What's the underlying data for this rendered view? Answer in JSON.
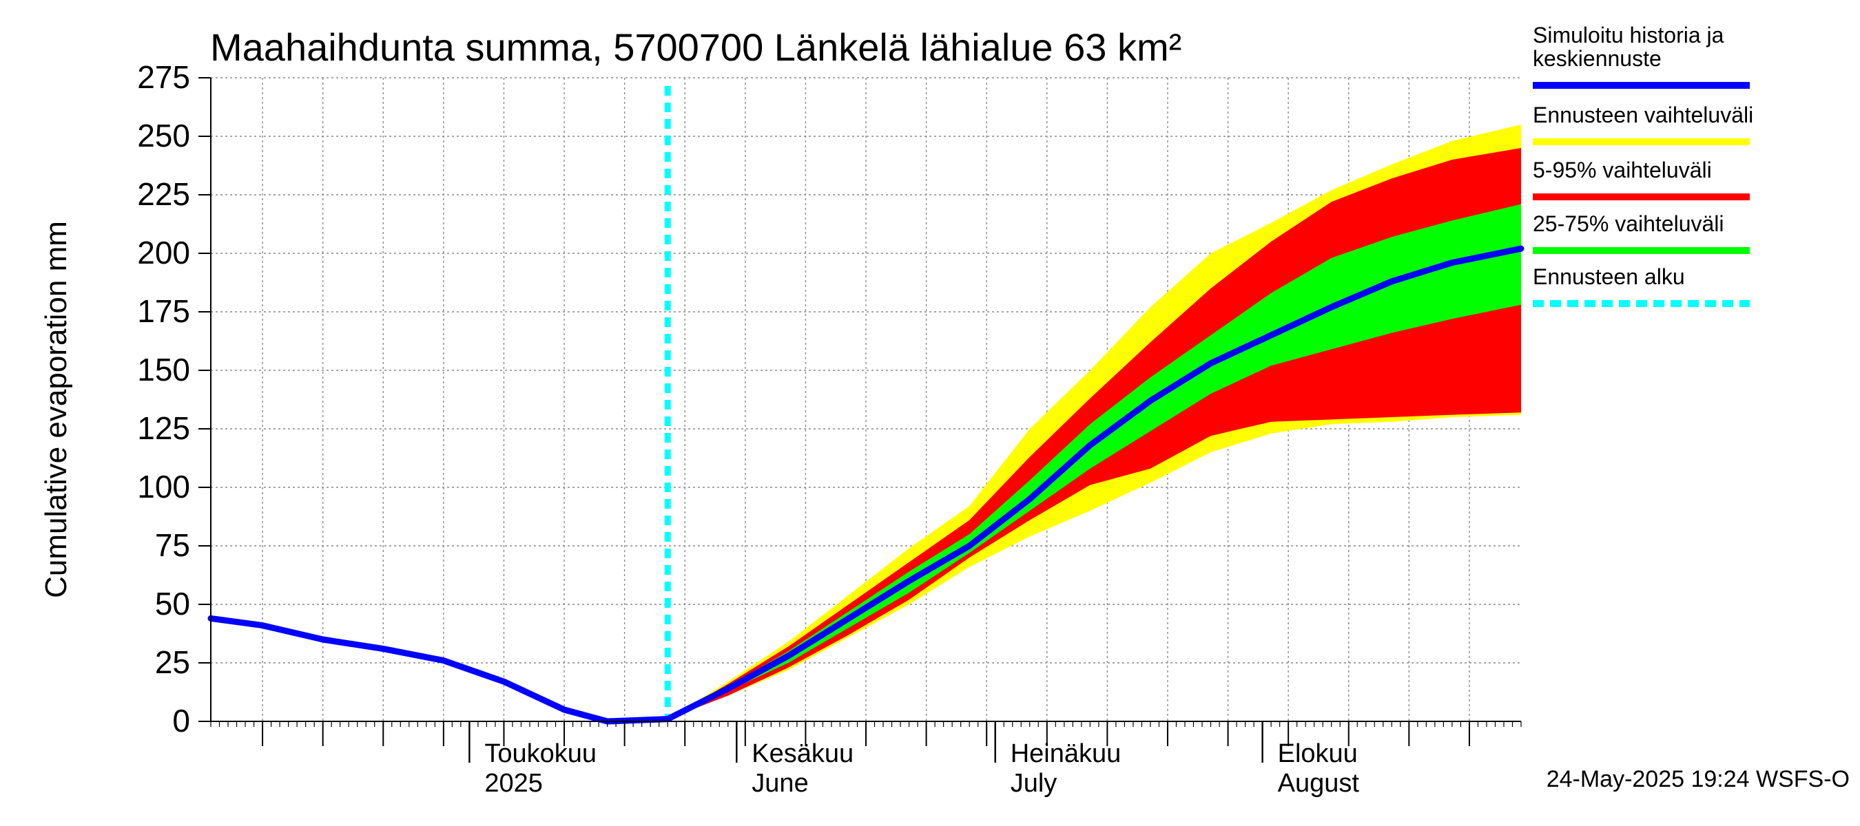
{
  "chart_data": {
    "type": "area",
    "title": "Maahaihdunta summa, 5700700 Länkelä lähialue 63 km²",
    "ylabel": "Cumulative evaporation   mm",
    "xlabel": "",
    "xlim": [
      "2025-04-01",
      "2025-08-31"
    ],
    "ylim": [
      0,
      275
    ],
    "grid": true,
    "y_ticks": [
      "0",
      "25",
      "50",
      "75",
      "100",
      "125",
      "150",
      "175",
      "200",
      "225",
      "250",
      "275"
    ],
    "x_month_labels": [
      {
        "date": "2025-05-01",
        "line1": "Toukokuu",
        "line2": "2025"
      },
      {
        "date": "2025-06-01",
        "line1": "Kesäkuu",
        "line2": "June"
      },
      {
        "date": "2025-07-01",
        "line1": "Heinäkuu",
        "line2": "July"
      },
      {
        "date": "2025-08-01",
        "line1": "Elokuu",
        "line2": "August"
      }
    ],
    "forecast_start": "2025-05-24",
    "x": [
      "2025-04-01",
      "2025-04-07",
      "2025-04-14",
      "2025-04-21",
      "2025-04-28",
      "2025-05-05",
      "2025-05-12",
      "2025-05-17",
      "2025-05-24",
      "2025-05-31",
      "2025-06-07",
      "2025-06-14",
      "2025-06-21",
      "2025-06-28",
      "2025-07-05",
      "2025-07-12",
      "2025-07-19",
      "2025-07-26",
      "2025-08-02",
      "2025-08-09",
      "2025-08-16",
      "2025-08-23",
      "2025-08-31"
    ],
    "series": [
      {
        "name": "Simuloitu historia ja keskiennuste",
        "color": "#0000ff",
        "values": [
          44,
          41,
          35,
          31,
          26,
          17,
          5,
          0,
          1,
          14,
          28,
          44,
          60,
          75,
          95,
          118,
          137,
          153,
          165,
          177,
          188,
          196,
          202
        ]
      },
      {
        "name": "Ennusteen vaihteluväli",
        "color": "#ffff00",
        "upper": [
          null,
          null,
          null,
          null,
          null,
          null,
          null,
          null,
          1,
          17,
          34,
          54,
          74,
          92,
          125,
          150,
          177,
          200,
          213,
          227,
          238,
          248,
          255
        ],
        "lower": [
          null,
          null,
          null,
          null,
          null,
          null,
          null,
          null,
          1,
          11,
          22,
          36,
          50,
          66,
          79,
          90,
          102,
          115,
          123,
          127,
          128,
          130,
          131
        ]
      },
      {
        "name": "5-95% vaihteluväli",
        "color": "#ff0000",
        "upper": [
          null,
          null,
          null,
          null,
          null,
          null,
          null,
          null,
          1,
          16,
          32,
          50,
          68,
          86,
          113,
          138,
          162,
          185,
          205,
          222,
          232,
          240,
          245
        ],
        "lower": [
          null,
          null,
          null,
          null,
          null,
          null,
          null,
          null,
          1,
          11,
          23,
          37,
          52,
          70,
          86,
          101,
          108,
          122,
          128,
          129,
          130,
          131,
          132
        ]
      },
      {
        "name": "25-75% vaihteluväli",
        "color": "#00ff00",
        "upper": [
          null,
          null,
          null,
          null,
          null,
          null,
          null,
          null,
          1,
          15,
          30,
          47,
          64,
          80,
          103,
          127,
          147,
          165,
          183,
          198,
          207,
          214,
          221
        ],
        "lower": [
          null,
          null,
          null,
          null,
          null,
          null,
          null,
          null,
          1,
          13,
          25,
          40,
          55,
          72,
          90,
          108,
          124,
          140,
          152,
          159,
          166,
          172,
          178
        ]
      }
    ],
    "legend": {
      "placement": "right",
      "items": [
        {
          "label_lines": [
            "Simuloitu historia ja",
            "keskiennuste"
          ],
          "color": "#0000ff",
          "style": "solid"
        },
        {
          "label_lines": [
            "Ennusteen vaihteluväli"
          ],
          "color": "#ffff00",
          "style": "solid"
        },
        {
          "label_lines": [
            "5-95% vaihteluväli"
          ],
          "color": "#ff0000",
          "style": "solid"
        },
        {
          "label_lines": [
            "25-75% vaihteluväli"
          ],
          "color": "#00ff00",
          "style": "solid"
        },
        {
          "label_lines": [
            "Ennusteen alku"
          ],
          "color": "#00ffff",
          "style": "dashed"
        }
      ]
    },
    "footer_stamp": "24-May-2025 19:24 WSFS-O"
  }
}
